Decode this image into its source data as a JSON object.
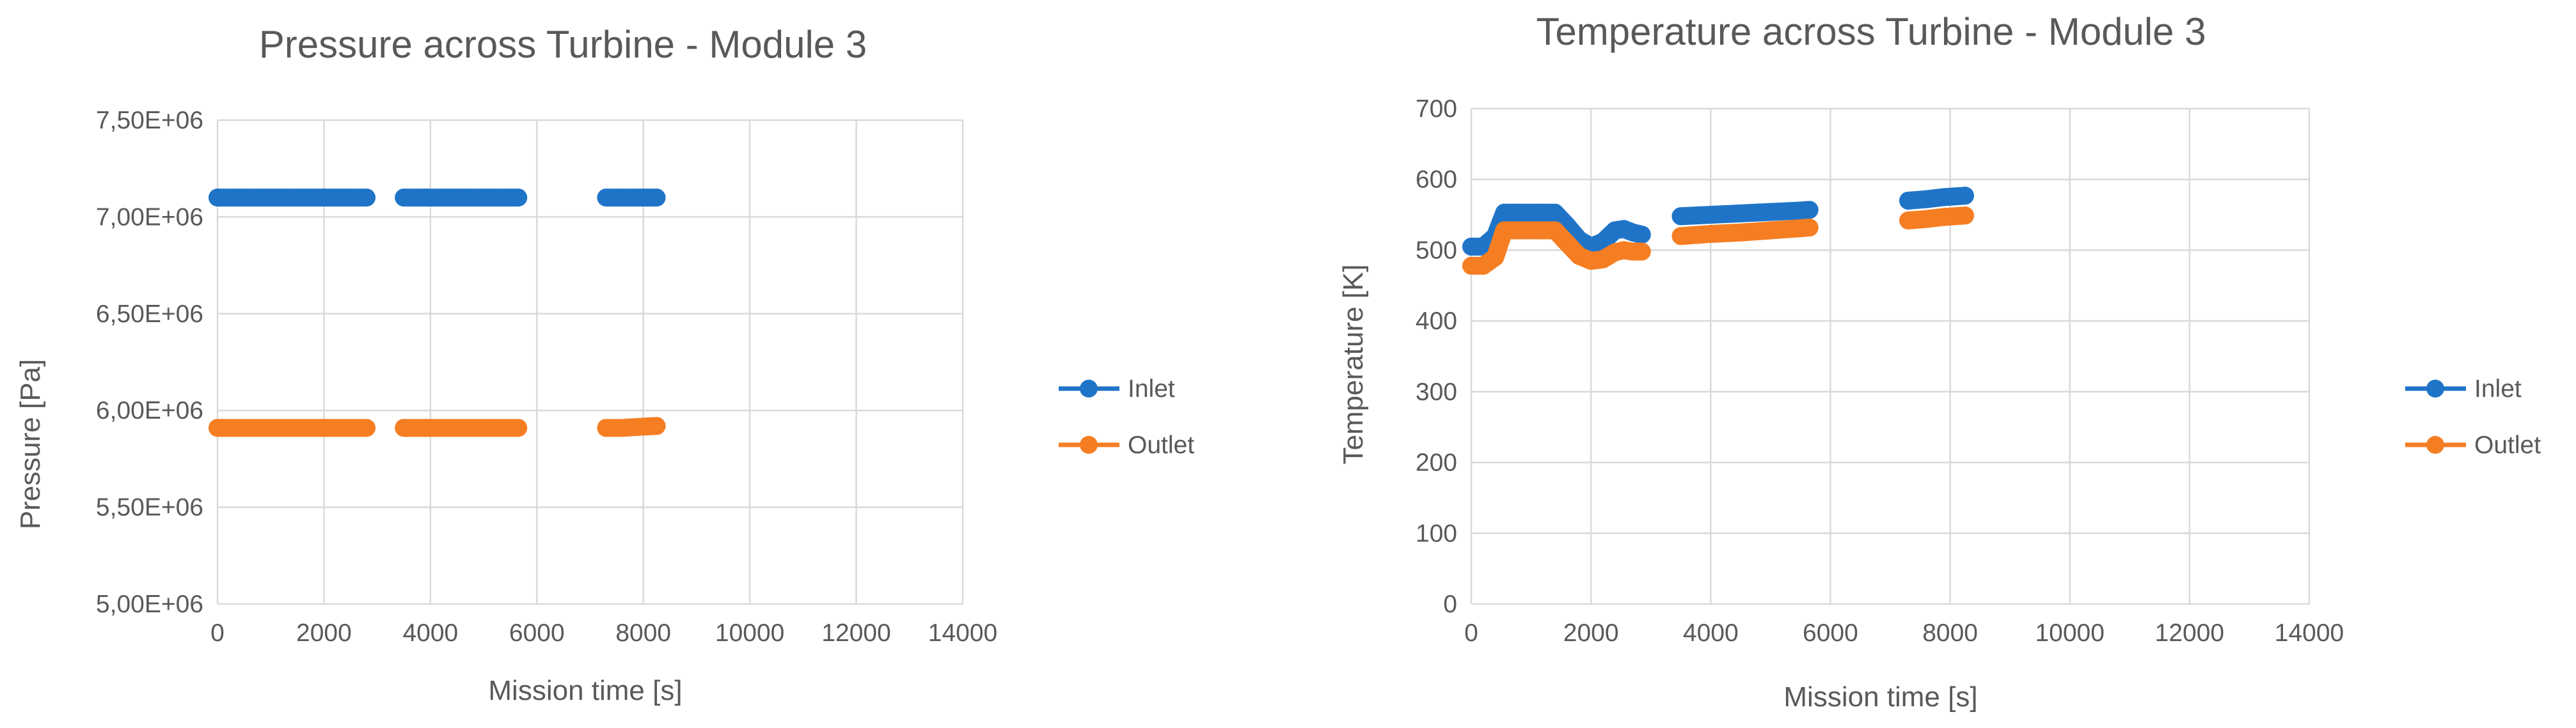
{
  "colors": {
    "inlet": "#1f74c8",
    "outlet": "#f57e23",
    "grid": "#d9d9d9",
    "text": "#595959"
  },
  "chart_data": [
    {
      "type": "scatter",
      "title": "Pressure across Turbine - Module 3",
      "xlabel": "Mission time [s]",
      "ylabel": "Pressure [Pa]",
      "xlim": [
        0,
        14000
      ],
      "ylim": [
        5000000,
        7500000
      ],
      "x_ticks": [
        0,
        2000,
        4000,
        6000,
        8000,
        10000,
        12000,
        14000
      ],
      "x_tick_labels": [
        "0",
        "2000",
        "4000",
        "6000",
        "8000",
        "10000",
        "12000",
        "14000"
      ],
      "y_ticks": [
        5000000,
        5500000,
        6000000,
        6500000,
        7000000,
        7500000
      ],
      "y_tick_labels": [
        "5,00E+06",
        "5,50E+06",
        "6,00E+06",
        "6,50E+06",
        "7,00E+06",
        "7,50E+06"
      ],
      "grid": "vertical and horizontal",
      "legend_position": "right",
      "series": [
        {
          "name": "Inlet",
          "color": "#1f74c8",
          "segments": [
            {
              "x": [
                0,
                400,
                800,
                1200,
                1600,
                2000,
                2400,
                2800
              ],
              "y": [
                7100000,
                7100000,
                7100000,
                7100000,
                7100000,
                7100000,
                7100000,
                7100000
              ]
            },
            {
              "x": [
                3500,
                3900,
                4300,
                4700,
                5100,
                5500,
                5650
              ],
              "y": [
                7100000,
                7100000,
                7100000,
                7100000,
                7100000,
                7100000,
                7100000
              ]
            },
            {
              "x": [
                7300,
                7600,
                7900,
                8250
              ],
              "y": [
                7100000,
                7100000,
                7100000,
                7100000
              ]
            }
          ]
        },
        {
          "name": "Outlet",
          "color": "#f57e23",
          "segments": [
            {
              "x": [
                0,
                400,
                800,
                1200,
                1600,
                2000,
                2400,
                2800
              ],
              "y": [
                5910000,
                5910000,
                5910000,
                5910000,
                5910000,
                5910000,
                5910000,
                5910000
              ]
            },
            {
              "x": [
                3500,
                3900,
                4300,
                4700,
                5100,
                5500,
                5650
              ],
              "y": [
                5910000,
                5910000,
                5910000,
                5910000,
                5910000,
                5910000,
                5910000
              ]
            },
            {
              "x": [
                7300,
                7600,
                7900,
                8250
              ],
              "y": [
                5910000,
                5910000,
                5915000,
                5920000
              ]
            }
          ]
        }
      ]
    },
    {
      "type": "scatter",
      "title": "Temperature across Turbine - Module 3",
      "xlabel": "Mission time [s]",
      "ylabel": "Temperature [K]",
      "xlim": [
        0,
        14000
      ],
      "ylim": [
        0,
        700
      ],
      "x_ticks": [
        0,
        2000,
        4000,
        6000,
        8000,
        10000,
        12000,
        14000
      ],
      "x_tick_labels": [
        "0",
        "2000",
        "4000",
        "6000",
        "8000",
        "10000",
        "12000",
        "14000"
      ],
      "y_ticks": [
        0,
        100,
        200,
        300,
        400,
        500,
        600,
        700
      ],
      "y_tick_labels": [
        "0",
        "100",
        "200",
        "300",
        "400",
        "500",
        "600",
        "700"
      ],
      "grid": "vertical and horizontal",
      "legend_position": "right",
      "series": [
        {
          "name": "Inlet",
          "color": "#1f74c8",
          "segments": [
            {
              "x": [
                0,
                200,
                400,
                550,
                800,
                1100,
                1400,
                1600,
                1800,
                2000,
                2200,
                2400,
                2550,
                2700,
                2850
              ],
              "y": [
                505,
                505,
                520,
                553,
                553,
                553,
                553,
                535,
                515,
                505,
                512,
                528,
                530,
                525,
                522
              ]
            },
            {
              "x": [
                3500,
                4000,
                4500,
                5000,
                5500,
                5650
              ],
              "y": [
                548,
                550,
                552,
                554,
                556,
                557
              ]
            },
            {
              "x": [
                7300,
                7600,
                7900,
                8250
              ],
              "y": [
                570,
                572,
                575,
                577
              ]
            }
          ]
        },
        {
          "name": "Outlet",
          "color": "#f57e23",
          "segments": [
            {
              "x": [
                0,
                200,
                400,
                550,
                800,
                1100,
                1400,
                1600,
                1800,
                2000,
                2200,
                2400,
                2550,
                2700,
                2850
              ],
              "y": [
                478,
                478,
                490,
                528,
                528,
                528,
                528,
                510,
                492,
                485,
                487,
                497,
                500,
                498,
                498
              ]
            },
            {
              "x": [
                3500,
                4000,
                4500,
                5000,
                5500,
                5650
              ],
              "y": [
                520,
                523,
                525,
                528,
                531,
                532
              ]
            },
            {
              "x": [
                7300,
                7600,
                7900,
                8250
              ],
              "y": [
                542,
                544,
                547,
                549
              ]
            }
          ]
        }
      ]
    }
  ]
}
